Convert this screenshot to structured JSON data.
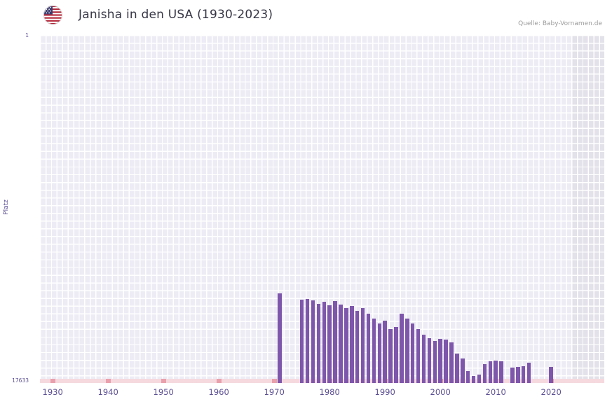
{
  "header": {
    "title": "Janisha in den USA (1930-2023)",
    "source": "Quelle: Baby-Vornamen.de"
  },
  "axes": {
    "y_label": "Platz",
    "y_top": "1",
    "y_bottom": "17633",
    "x_tick_labels": [
      "1930",
      "1940",
      "1950",
      "1960",
      "1970",
      "1980",
      "1990",
      "2000",
      "2010",
      "2020"
    ]
  },
  "colors": {
    "bar": "#7e57ab",
    "plot_background": "#edecf5",
    "grid_line": "#ffffff",
    "future_region_background": "#e3e1e9",
    "baseline_strip": "#f5d9de",
    "decade_mark": "#e9a0ac",
    "axis_text": "#5c4f93",
    "title_text": "#363646",
    "source_text": "#9b9b9b"
  },
  "chart_data": {
    "type": "bar",
    "title": "Janisha in den USA (1930-2023)",
    "xlabel": "",
    "ylabel": "Platz",
    "y_min": 1,
    "y_max": 17633,
    "y_inverted": true,
    "x_min": 1927.7,
    "x_max": 2029.6,
    "x_ticks": [
      1930,
      1940,
      1950,
      1960,
      1970,
      1980,
      1990,
      2000,
      2010,
      2020
    ],
    "no_data_region_start": 2023.6,
    "bar_color": "#7e57ab",
    "legend": "none",
    "grid": true,
    "points": [
      {
        "year": 1971,
        "rank": 13100
      },
      {
        "year": 1975,
        "rank": 13420
      },
      {
        "year": 1976,
        "rank": 13380
      },
      {
        "year": 1977,
        "rank": 13450
      },
      {
        "year": 1978,
        "rank": 13620
      },
      {
        "year": 1979,
        "rank": 13520
      },
      {
        "year": 1980,
        "rank": 13700
      },
      {
        "year": 1981,
        "rank": 13480
      },
      {
        "year": 1982,
        "rank": 13660
      },
      {
        "year": 1983,
        "rank": 13820
      },
      {
        "year": 1984,
        "rank": 13740
      },
      {
        "year": 1985,
        "rank": 13990
      },
      {
        "year": 1986,
        "rank": 13830
      },
      {
        "year": 1987,
        "rank": 14120
      },
      {
        "year": 1988,
        "rank": 14360
      },
      {
        "year": 1989,
        "rank": 14610
      },
      {
        "year": 1990,
        "rank": 14470
      },
      {
        "year": 1991,
        "rank": 14890
      },
      {
        "year": 1992,
        "rank": 14810
      },
      {
        "year": 1993,
        "rank": 14130
      },
      {
        "year": 1994,
        "rank": 14370
      },
      {
        "year": 1995,
        "rank": 14620
      },
      {
        "year": 1996,
        "rank": 14890
      },
      {
        "year": 1997,
        "rank": 15170
      },
      {
        "year": 1998,
        "rank": 15350
      },
      {
        "year": 1999,
        "rank": 15490
      },
      {
        "year": 2000,
        "rank": 15390
      },
      {
        "year": 2001,
        "rank": 15440
      },
      {
        "year": 2002,
        "rank": 15590
      },
      {
        "year": 2003,
        "rank": 16130
      },
      {
        "year": 2004,
        "rank": 16390
      },
      {
        "year": 2005,
        "rank": 17030
      },
      {
        "year": 2006,
        "rank": 17270
      },
      {
        "year": 2007,
        "rank": 17190
      },
      {
        "year": 2008,
        "rank": 16660
      },
      {
        "year": 2009,
        "rank": 16530
      },
      {
        "year": 2010,
        "rank": 16490
      },
      {
        "year": 2011,
        "rank": 16530
      },
      {
        "year": 2013,
        "rank": 16850
      },
      {
        "year": 2014,
        "rank": 16810
      },
      {
        "year": 2015,
        "rank": 16780
      },
      {
        "year": 2016,
        "rank": 16600
      },
      {
        "year": 2020,
        "rank": 16810
      }
    ]
  }
}
